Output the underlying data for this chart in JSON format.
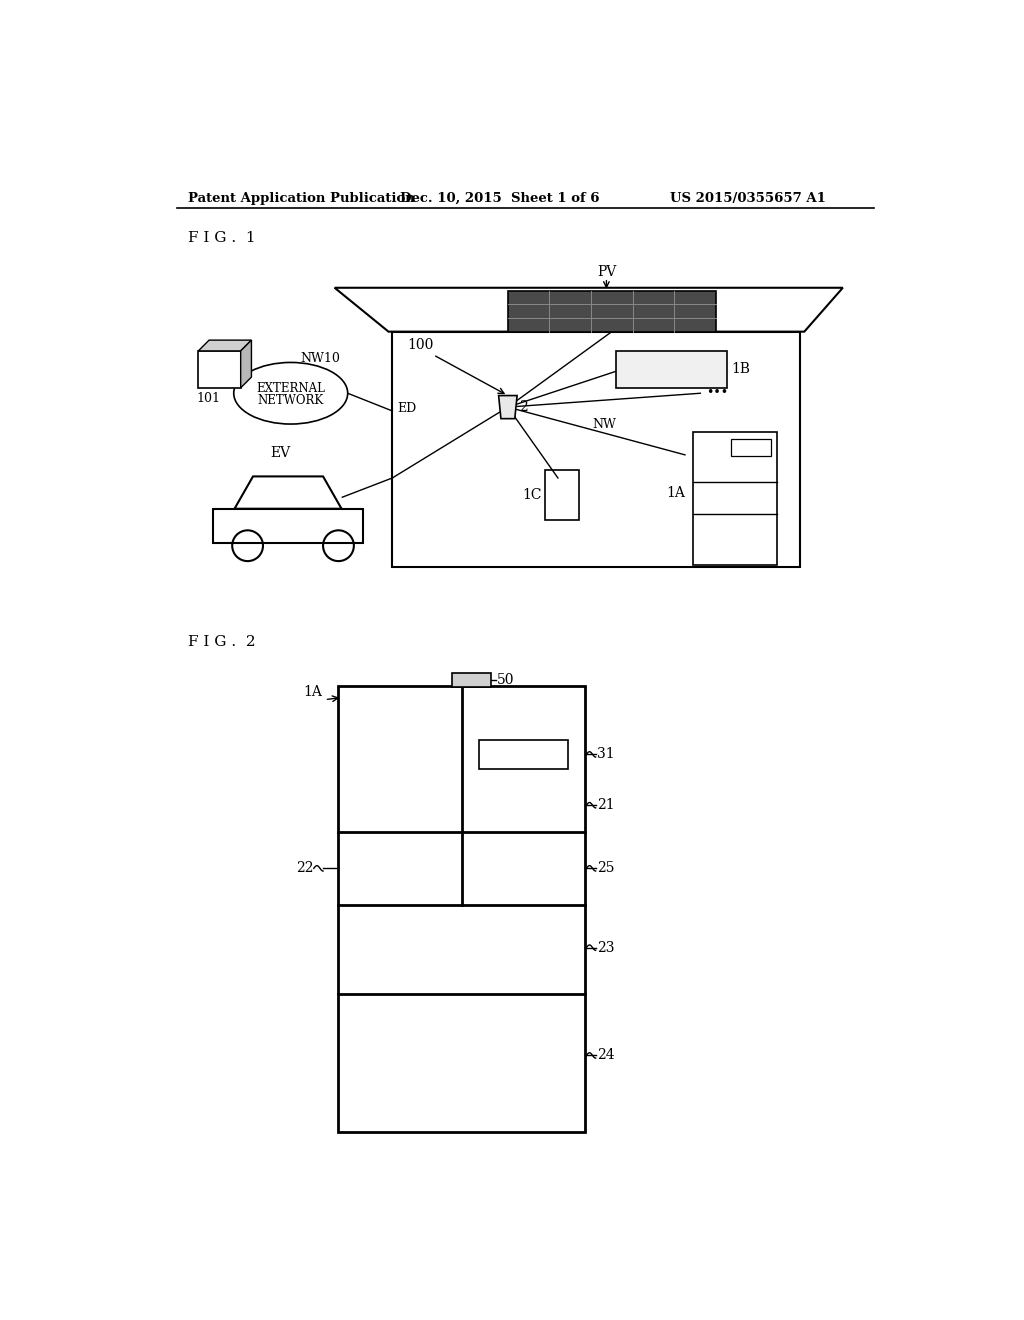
{
  "bg_color": "#ffffff",
  "header_left": "Patent Application Publication",
  "header_mid": "Dec. 10, 2015  Sheet 1 of 6",
  "header_right": "US 2015/0355657 A1",
  "fig1_label": "F I G .  1",
  "fig2_label": "F I G .  2"
}
